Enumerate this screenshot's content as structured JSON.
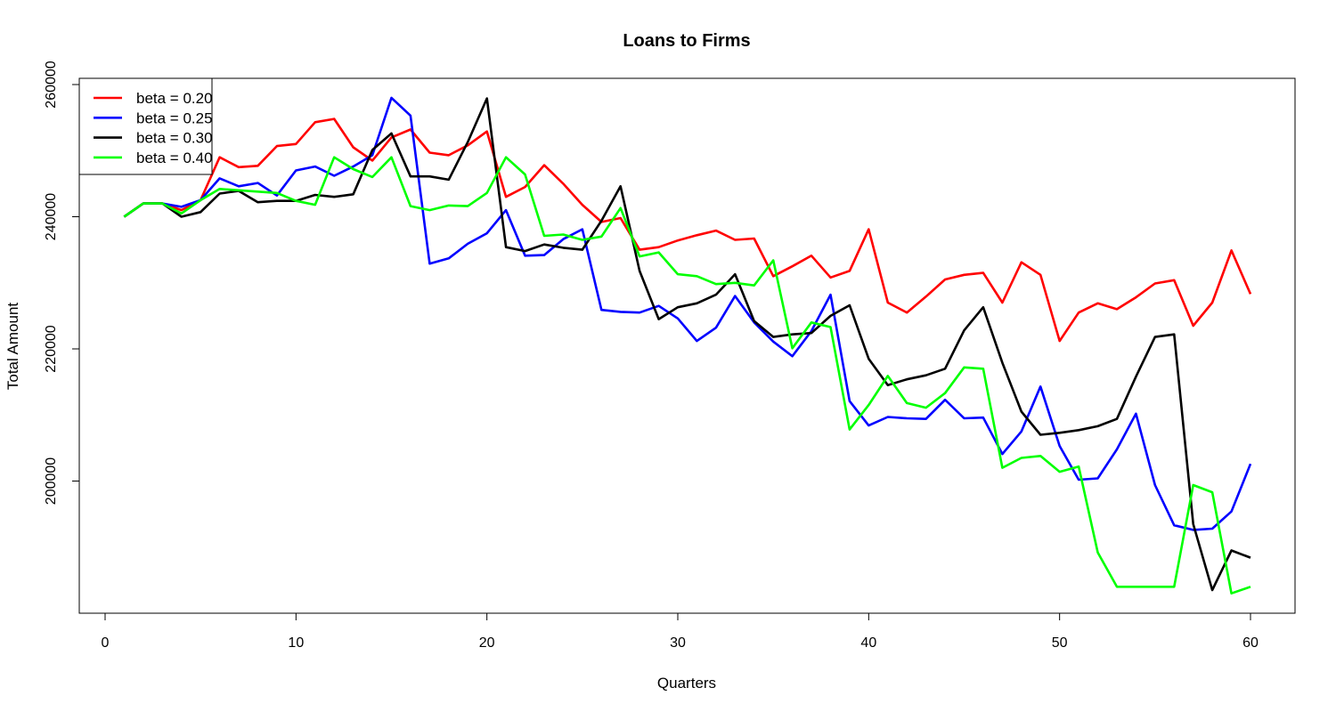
{
  "chart_data": {
    "type": "line",
    "title": "Loans to Firms",
    "xlabel": "Quarters",
    "ylabel": "Total Amount",
    "xlim": [
      1,
      60
    ],
    "ylim": [
      184000,
      258000
    ],
    "x_ticks": [
      0,
      10,
      20,
      30,
      40,
      50,
      60
    ],
    "y_ticks": [
      200000,
      220000,
      240000,
      260000
    ],
    "grid": false,
    "legend_position": "top-left",
    "x": [
      1,
      2,
      3,
      4,
      5,
      6,
      7,
      8,
      9,
      10,
      11,
      12,
      13,
      14,
      15,
      16,
      17,
      18,
      19,
      20,
      21,
      22,
      23,
      24,
      25,
      26,
      27,
      28,
      29,
      30,
      31,
      32,
      33,
      34,
      35,
      36,
      37,
      38,
      39,
      40,
      41,
      42,
      43,
      44,
      45,
      46,
      47,
      48,
      49,
      50,
      51,
      52,
      53,
      54,
      55,
      56,
      57,
      58,
      59,
      60
    ],
    "series": [
      {
        "name": "beta = 0.20",
        "color": "#ff0000",
        "values": [
          240000,
          242000,
          242000,
          241000,
          242500,
          249000,
          247500,
          247700,
          250700,
          251000,
          254300,
          254800,
          250500,
          248500,
          252000,
          253200,
          249700,
          249300,
          250800,
          252900,
          243000,
          244500,
          247800,
          245000,
          241800,
          239200,
          239800,
          235000,
          235400,
          236400,
          237200,
          237900,
          236500,
          236700,
          231000,
          232500,
          234100,
          230800,
          231800,
          238100,
          227000,
          225500,
          227900,
          230500,
          231200,
          231500,
          227000,
          233100,
          231200,
          221200,
          225500,
          226900,
          226000,
          227800,
          229900,
          230400,
          223500,
          227000,
          234900,
          228300
        ]
      },
      {
        "name": "beta = 0.25",
        "color": "#0000ff",
        "values": [
          240000,
          242000,
          242000,
          241500,
          242500,
          245800,
          244600,
          245100,
          243200,
          247000,
          247600,
          246200,
          247600,
          249300,
          258000,
          255300,
          232900,
          233700,
          235900,
          237500,
          241000,
          234100,
          234200,
          236600,
          238100,
          225900,
          225600,
          225500,
          226500,
          224600,
          221200,
          223200,
          228000,
          224000,
          221100,
          218900,
          222700,
          228200,
          212100,
          208400,
          209700,
          209500,
          209400,
          212300,
          209500,
          209600,
          204100,
          207500,
          214300,
          205300,
          200200,
          200400,
          204800,
          210200,
          199400,
          193300,
          192600,
          192800,
          195400,
          202600
        ]
      },
      {
        "name": "beta = 0.30",
        "color": "#000000",
        "values": [
          240000,
          242000,
          242000,
          240000,
          240700,
          243500,
          243900,
          242200,
          242400,
          242400,
          243300,
          243000,
          243400,
          250100,
          252600,
          246100,
          246100,
          245600,
          251300,
          257900,
          235400,
          234800,
          235800,
          235300,
          235000,
          239400,
          244600,
          231800,
          224500,
          226300,
          226900,
          228200,
          231300,
          224200,
          221800,
          222200,
          222400,
          225000,
          226600,
          218500,
          214500,
          215400,
          216000,
          217000,
          222800,
          226300,
          217900,
          210500,
          207000,
          207300,
          207700,
          208300,
          209400,
          215800,
          221800,
          222200,
          193500,
          183500,
          189500,
          188400
        ]
      },
      {
        "name": "beta = 0.40",
        "color": "#00ff00",
        "values": [
          240000,
          242000,
          242000,
          240500,
          242500,
          244200,
          244000,
          243800,
          243600,
          242400,
          241800,
          249000,
          247200,
          246000,
          249000,
          241600,
          241000,
          241700,
          241600,
          243600,
          249000,
          246400,
          237100,
          237300,
          236500,
          237000,
          241300,
          234000,
          234600,
          231300,
          231000,
          229800,
          230000,
          229600,
          233400,
          220100,
          224000,
          223300,
          207800,
          211500,
          215900,
          211800,
          211100,
          213300,
          217200,
          217000,
          202000,
          203500,
          203800,
          201400,
          202200,
          189200,
          184000,
          184000,
          184000,
          184000,
          199400,
          198300,
          183000,
          184000
        ]
      }
    ]
  }
}
